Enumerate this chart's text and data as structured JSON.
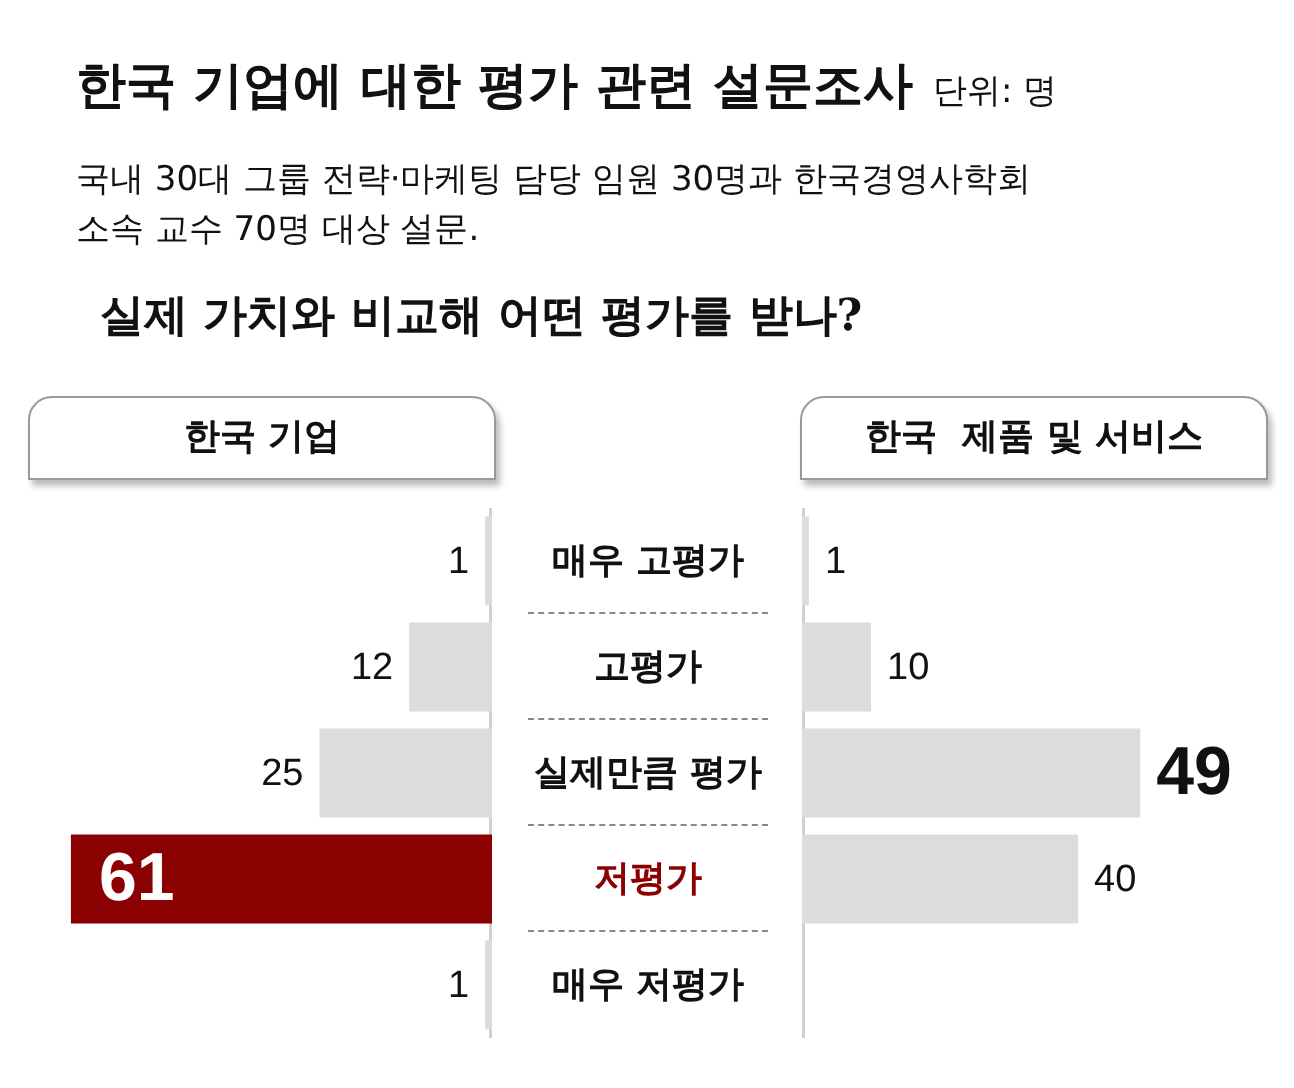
{
  "chart_data": [
    {
      "type": "bar",
      "orientation": "horizontal",
      "title": "한국 기업에 대한 평가 관련 설문조사",
      "subtitle": "국내 30대 그룹 전략·마케팅 담당 임원 30명과 한국경영사학회 소속 교수 70명 대상 설문.",
      "annotations": [
        "단위: 명",
        "실제 가치와 비교해 어떤 평가를 받나?"
      ],
      "categories": [
        "매우 고평가",
        "고평가",
        "실제만큼 평가",
        "저평가",
        "매우 저평가"
      ],
      "series": [
        {
          "name": "한국 기업",
          "color": "#dcdcdd",
          "colors": [
            "#dcdcdd",
            "#dcdcdd",
            "#dcdcdd",
            "#8b0000",
            "#dcdcdd"
          ],
          "values": [
            1,
            12,
            25,
            61,
            1
          ]
        }
      ],
      "data_labels": true,
      "tick_labels": "y",
      "legend": false
    },
    {
      "type": "bar",
      "orientation": "horizontal",
      "categories": [
        null,
        null,
        null,
        null,
        null
      ],
      "series": [
        {
          "name": "한국  제품 및 서비스",
          "color": "#dcdcdd",
          "values": [
            1,
            10,
            49,
            40,
            null
          ]
        }
      ],
      "data_labels": true,
      "tick_labels": false,
      "legend": false
    }
  ]
}
